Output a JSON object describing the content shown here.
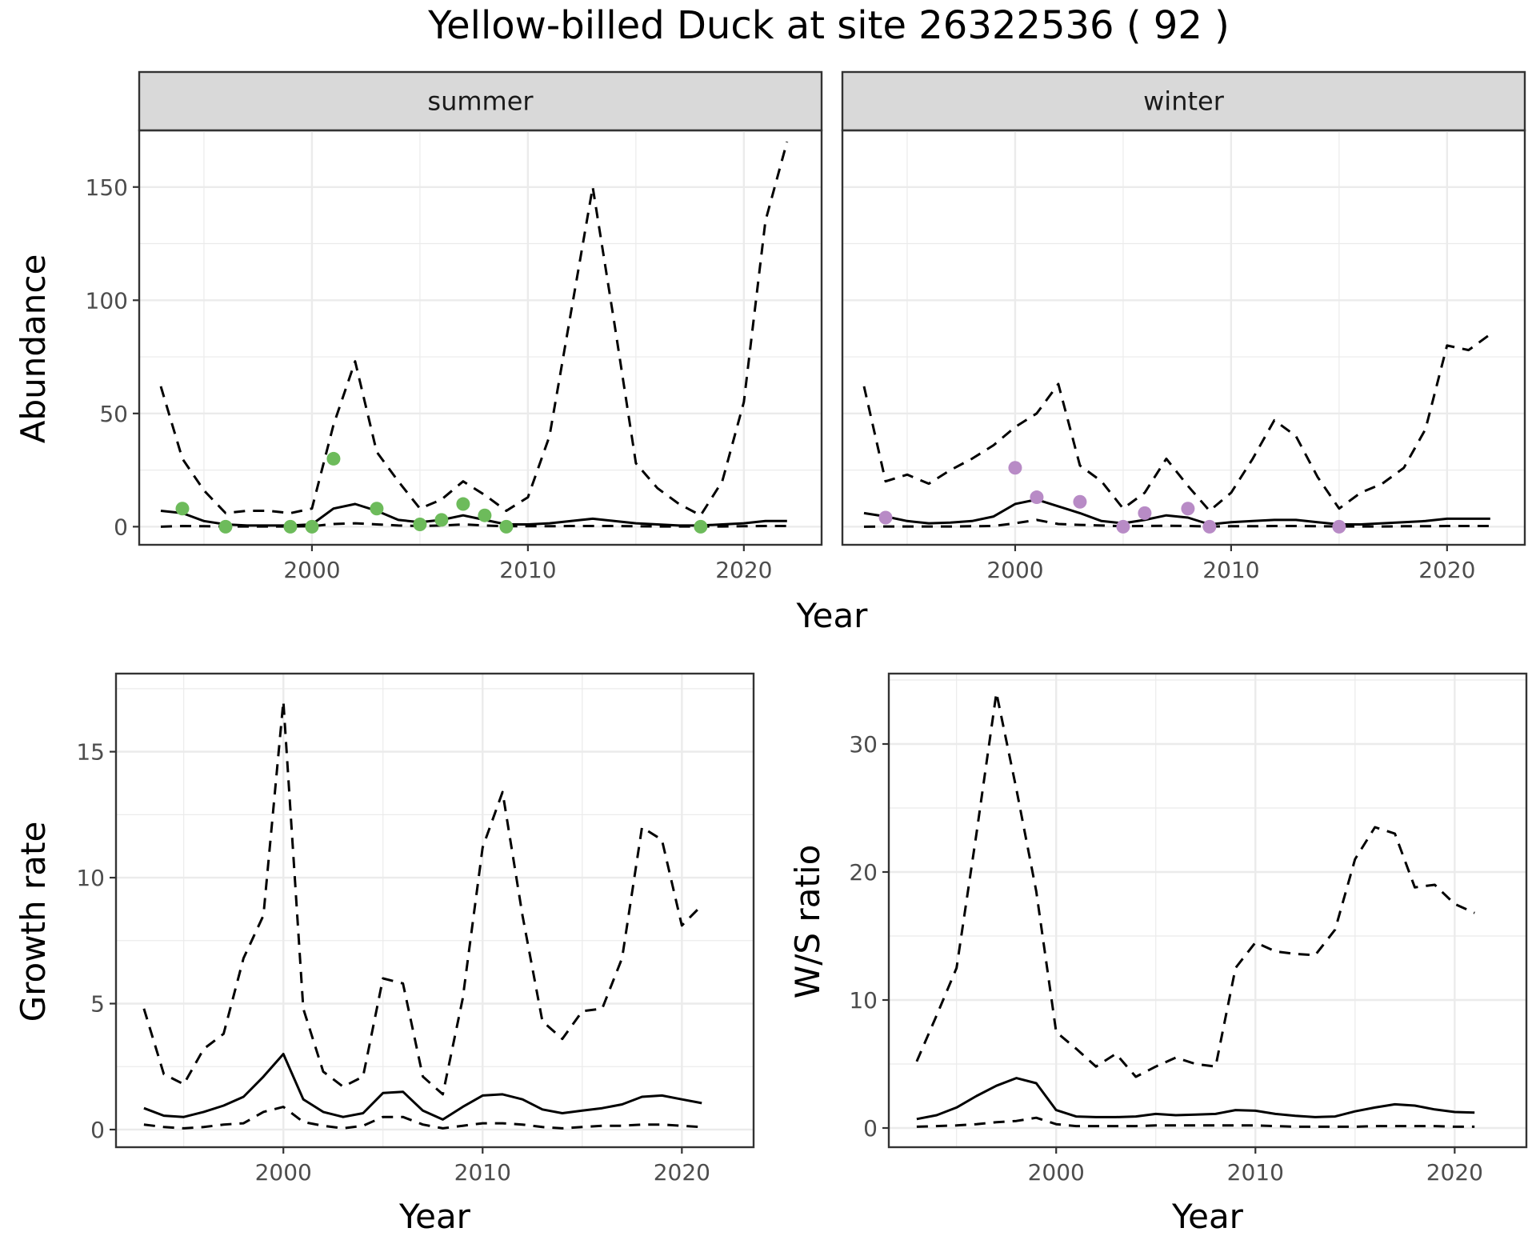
{
  "figure_title": "Yellow-billed Duck at site 26322536 ( 92 )",
  "colors": {
    "summer_points": "#6dbb5b",
    "winter_points": "#b88bc6",
    "lines": "#000000"
  },
  "chart_data": [
    {
      "type": "line",
      "panel": "summer",
      "strip_label": "summer",
      "ylabel": "Abundance",
      "xlabel": "Year",
      "xlim": [
        1992,
        2023.6
      ],
      "ylim": [
        -8,
        175
      ],
      "x_ticks": [
        2000,
        2010,
        2020
      ],
      "y_ticks": [
        0,
        50,
        100,
        150
      ],
      "grid": true,
      "series": [
        {
          "role": "mean",
          "style": "solid",
          "x": [
            1993,
            1994,
            1995,
            1996,
            1997,
            1998,
            1999,
            2000,
            2001,
            2002,
            2003,
            2004,
            2005,
            2006,
            2007,
            2008,
            2009,
            2010,
            2011,
            2012,
            2013,
            2014,
            2015,
            2016,
            2017,
            2018,
            2019,
            2020,
            2021,
            2022
          ],
          "y": [
            7,
            6,
            2.5,
            1,
            0.5,
            0.5,
            0.5,
            1,
            8,
            10,
            7,
            3,
            2,
            3,
            5,
            3,
            1,
            1,
            1.5,
            2.5,
            3.5,
            2.5,
            1.5,
            1,
            0.5,
            0.5,
            1,
            1.5,
            2.5,
            2.5
          ]
        },
        {
          "role": "upper",
          "style": "dashed",
          "x": [
            1993,
            1994,
            1995,
            1996,
            1997,
            1998,
            1999,
            2000,
            2001,
            2002,
            2003,
            2004,
            2005,
            2006,
            2007,
            2008,
            2009,
            2010,
            2011,
            2012,
            2013,
            2014,
            2015,
            2016,
            2017,
            2018,
            2019,
            2020,
            2021,
            2022
          ],
          "y": [
            62,
            30,
            16,
            6,
            7,
            7,
            6,
            8,
            45,
            73,
            33,
            20,
            8,
            12,
            20,
            14,
            7,
            13,
            40,
            95,
            150,
            90,
            28,
            17,
            10,
            5,
            20,
            55,
            135,
            170
          ]
        },
        {
          "role": "lower",
          "style": "dashed",
          "x": [
            1993,
            1994,
            1995,
            1996,
            1997,
            1998,
            1999,
            2000,
            2001,
            2002,
            2003,
            2004,
            2005,
            2006,
            2007,
            2008,
            2009,
            2010,
            2011,
            2012,
            2013,
            2014,
            2015,
            2016,
            2017,
            2018,
            2019,
            2020,
            2021,
            2022
          ],
          "y": [
            0,
            0.3,
            0.2,
            0.1,
            0.1,
            0.1,
            0.1,
            0.2,
            1.2,
            1.5,
            1,
            0.5,
            0.3,
            0.5,
            1,
            0.5,
            0.2,
            0.2,
            0.2,
            0.3,
            0.3,
            0.3,
            0.2,
            0.1,
            0.1,
            0.1,
            0.1,
            0.2,
            0.3,
            0.3
          ]
        }
      ],
      "points": {
        "x": [
          1994,
          1996,
          1999,
          2000,
          2001,
          2003,
          2005,
          2006,
          2007,
          2008,
          2009,
          2018
        ],
        "y": [
          8,
          0,
          0,
          0,
          30,
          8,
          1,
          3,
          10,
          5,
          0,
          0
        ]
      }
    },
    {
      "type": "line",
      "panel": "winter",
      "strip_label": "winter",
      "xlabel": "Year",
      "xlim": [
        1992,
        2023.6
      ],
      "ylim": [
        -8,
        175
      ],
      "x_ticks": [
        2000,
        2010,
        2020
      ],
      "y_ticks": [
        0,
        50,
        100,
        150
      ],
      "grid": true,
      "series": [
        {
          "role": "mean",
          "style": "solid",
          "x": [
            1993,
            1994,
            1995,
            1996,
            1997,
            1998,
            1999,
            2000,
            2001,
            2002,
            2003,
            2004,
            2005,
            2006,
            2007,
            2008,
            2009,
            2010,
            2011,
            2012,
            2013,
            2014,
            2015,
            2016,
            2017,
            2018,
            2019,
            2020,
            2021,
            2022
          ],
          "y": [
            6,
            4.5,
            2.5,
            1.5,
            1.8,
            2.5,
            4.5,
            10,
            12,
            9,
            6,
            2.5,
            1.5,
            3,
            5,
            4,
            1,
            2,
            2.5,
            3,
            3,
            2,
            1,
            1,
            1.5,
            2,
            2.5,
            3.5,
            3.5,
            3.5
          ]
        },
        {
          "role": "upper",
          "style": "dashed",
          "x": [
            1993,
            1994,
            1995,
            1996,
            1997,
            1998,
            1999,
            2000,
            2001,
            2002,
            2003,
            2004,
            2005,
            2006,
            2007,
            2008,
            2009,
            2010,
            2011,
            2012,
            2013,
            2014,
            2015,
            2016,
            2017,
            2018,
            2019,
            2020,
            2021,
            2022
          ],
          "y": [
            62,
            20,
            23,
            19,
            25,
            30,
            36,
            44,
            50,
            63,
            27,
            20,
            8,
            15,
            30,
            18,
            7,
            15,
            30,
            47,
            40,
            22,
            8,
            15,
            19,
            26,
            43,
            80,
            78,
            85
          ]
        },
        {
          "role": "lower",
          "style": "dashed",
          "x": [
            1993,
            1994,
            1995,
            1996,
            1997,
            1998,
            1999,
            2000,
            2001,
            2002,
            2003,
            2004,
            2005,
            2006,
            2007,
            2008,
            2009,
            2010,
            2011,
            2012,
            2013,
            2014,
            2015,
            2016,
            2017,
            2018,
            2019,
            2020,
            2021,
            2022
          ],
          "y": [
            0,
            0.1,
            0.1,
            0.1,
            0.1,
            0.2,
            0.3,
            1.5,
            3,
            1.2,
            0.8,
            0.5,
            0.2,
            0.3,
            0.4,
            0.3,
            0.1,
            0.2,
            0.2,
            0.3,
            0.3,
            0.2,
            0.1,
            0.1,
            0.1,
            0.2,
            0.2,
            0.3,
            0.3,
            0.3
          ]
        }
      ],
      "points": {
        "x": [
          1994,
          2000,
          2001,
          2003,
          2005,
          2006,
          2008,
          2009,
          2015
        ],
        "y": [
          4,
          26,
          13,
          11,
          0,
          6,
          8,
          0,
          0
        ]
      }
    },
    {
      "type": "line",
      "panel": "growth",
      "ylabel": "Growth rate",
      "xlabel": "Year",
      "xlim": [
        1991.6,
        2023.6
      ],
      "ylim": [
        -0.7,
        18.1
      ],
      "x_ticks": [
        2000,
        2010,
        2020
      ],
      "y_ticks": [
        0,
        5,
        10,
        15
      ],
      "grid": true,
      "series": [
        {
          "role": "mean",
          "style": "solid",
          "x": [
            1993,
            1994,
            1995,
            1996,
            1997,
            1998,
            1999,
            2000,
            2001,
            2002,
            2003,
            2004,
            2005,
            2006,
            2007,
            2008,
            2009,
            2010,
            2011,
            2012,
            2013,
            2014,
            2015,
            2016,
            2017,
            2018,
            2019,
            2020,
            2021
          ],
          "y": [
            0.85,
            0.55,
            0.5,
            0.7,
            0.95,
            1.3,
            2.1,
            3.0,
            1.2,
            0.7,
            0.5,
            0.65,
            1.45,
            1.5,
            0.75,
            0.4,
            0.9,
            1.35,
            1.4,
            1.2,
            0.8,
            0.65,
            0.75,
            0.85,
            1.0,
            1.3,
            1.35,
            1.2,
            1.05
          ]
        },
        {
          "role": "upper",
          "style": "dashed",
          "x": [
            1993,
            1994,
            1995,
            1996,
            1997,
            1998,
            1999,
            2000,
            2001,
            2002,
            2003,
            2004,
            2005,
            2006,
            2007,
            2008,
            2009,
            2010,
            2011,
            2012,
            2013,
            2014,
            2015,
            2016,
            2017,
            2018,
            2019,
            2020,
            2021
          ],
          "y": [
            4.8,
            2.2,
            1.8,
            3.2,
            3.8,
            6.8,
            8.5,
            17.0,
            4.8,
            2.3,
            1.7,
            2.1,
            6.0,
            5.8,
            2.1,
            1.4,
            5.2,
            11.2,
            13.4,
            8.5,
            4.3,
            3.6,
            4.7,
            4.8,
            6.8,
            12.0,
            11.5,
            8.1,
            8.9
          ]
        },
        {
          "role": "lower",
          "style": "dashed",
          "x": [
            1993,
            1994,
            1995,
            1996,
            1997,
            1998,
            1999,
            2000,
            2001,
            2002,
            2003,
            2004,
            2005,
            2006,
            2007,
            2008,
            2009,
            2010,
            2011,
            2012,
            2013,
            2014,
            2015,
            2016,
            2017,
            2018,
            2019,
            2020,
            2021
          ],
          "y": [
            0.2,
            0.1,
            0.05,
            0.1,
            0.2,
            0.25,
            0.7,
            0.9,
            0.3,
            0.15,
            0.05,
            0.15,
            0.5,
            0.5,
            0.2,
            0.05,
            0.15,
            0.25,
            0.25,
            0.2,
            0.1,
            0.05,
            0.1,
            0.15,
            0.15,
            0.2,
            0.2,
            0.15,
            0.1
          ]
        }
      ]
    },
    {
      "type": "line",
      "panel": "ws_ratio",
      "ylabel": "W/S ratio",
      "xlabel": "Year",
      "xlim": [
        1991.6,
        2023.6
      ],
      "ylim": [
        -1.5,
        35.5
      ],
      "x_ticks": [
        2000,
        2010,
        2020
      ],
      "y_ticks": [
        0,
        10,
        20,
        30
      ],
      "grid": true,
      "series": [
        {
          "role": "mean",
          "style": "solid",
          "x": [
            1993,
            1994,
            1995,
            1996,
            1997,
            1998,
            1999,
            2000,
            2001,
            2002,
            2003,
            2004,
            2005,
            2006,
            2007,
            2008,
            2009,
            2010,
            2011,
            2012,
            2013,
            2014,
            2015,
            2016,
            2017,
            2018,
            2019,
            2020,
            2021
          ],
          "y": [
            0.7,
            1.0,
            1.6,
            2.5,
            3.3,
            3.9,
            3.5,
            1.4,
            0.9,
            0.85,
            0.85,
            0.9,
            1.1,
            1.0,
            1.05,
            1.1,
            1.4,
            1.35,
            1.1,
            0.95,
            0.85,
            0.9,
            1.3,
            1.6,
            1.85,
            1.75,
            1.45,
            1.25,
            1.2
          ]
        },
        {
          "role": "upper",
          "style": "dashed",
          "x": [
            1993,
            1994,
            1995,
            1996,
            1997,
            1998,
            1999,
            2000,
            2001,
            2002,
            2003,
            2004,
            2005,
            2006,
            2007,
            2008,
            2009,
            2010,
            2011,
            2012,
            2013,
            2014,
            2015,
            2016,
            2017,
            2018,
            2019,
            2020,
            2021
          ],
          "y": [
            5.2,
            8.8,
            12.5,
            23.0,
            34.0,
            26.5,
            18.5,
            7.5,
            6.2,
            4.8,
            5.8,
            4.0,
            4.8,
            5.5,
            5.0,
            4.8,
            12.5,
            14.5,
            13.8,
            13.6,
            13.5,
            15.5,
            21.0,
            23.5,
            23.0,
            18.8,
            19.0,
            17.5,
            16.8
          ]
        },
        {
          "role": "lower",
          "style": "dashed",
          "x": [
            1993,
            1994,
            1995,
            1996,
            1997,
            1998,
            1999,
            2000,
            2001,
            2002,
            2003,
            2004,
            2005,
            2006,
            2007,
            2008,
            2009,
            2010,
            2011,
            2012,
            2013,
            2014,
            2015,
            2016,
            2017,
            2018,
            2019,
            2020,
            2021
          ],
          "y": [
            0.1,
            0.15,
            0.2,
            0.3,
            0.45,
            0.55,
            0.8,
            0.3,
            0.15,
            0.15,
            0.15,
            0.15,
            0.2,
            0.2,
            0.2,
            0.2,
            0.2,
            0.2,
            0.15,
            0.1,
            0.1,
            0.1,
            0.1,
            0.15,
            0.15,
            0.15,
            0.15,
            0.1,
            0.1
          ]
        }
      ]
    }
  ]
}
